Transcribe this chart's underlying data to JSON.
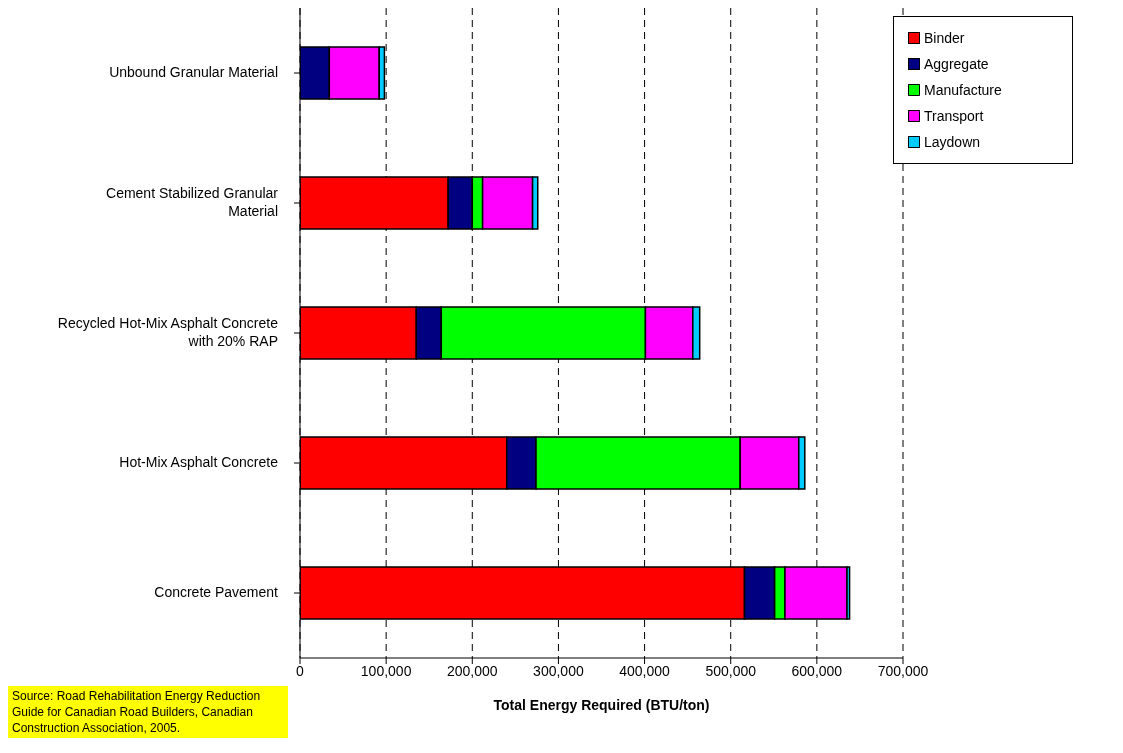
{
  "chart_data": {
    "type": "bar",
    "orientation": "horizontal",
    "stacked": true,
    "categories": [
      "Unbound Granular Material",
      "Cement Stabilized Granular Material",
      "Recycled Hot-Mix Asphalt Concrete with 20% RAP",
      "Hot-Mix Asphalt Concrete",
      "Concrete Pavement"
    ],
    "series": [
      {
        "name": "Binder",
        "color": "#ff0000",
        "values": [
          0,
          172000,
          135000,
          240000,
          516000
        ]
      },
      {
        "name": "Aggregate",
        "color": "#000080",
        "values": [
          34000,
          28000,
          29000,
          34000,
          35000
        ]
      },
      {
        "name": "Manufacture",
        "color": "#00ff00",
        "values": [
          0,
          12000,
          237000,
          237000,
          12000
        ]
      },
      {
        "name": "Transport",
        "color": "#ff00ff",
        "values": [
          58000,
          58000,
          55000,
          68000,
          72000
        ]
      },
      {
        "name": "Laydown",
        "color": "#00ccff",
        "values": [
          6000,
          6000,
          8000,
          7000,
          3000
        ]
      }
    ],
    "xlim": [
      0,
      700000
    ],
    "xticks": [
      0,
      {
        "value": 100000,
        "label": "100,000"
      },
      {
        "value": 200000,
        "label": "200,000"
      },
      {
        "value": 300000,
        "label": "300,000"
      },
      {
        "value": 400000,
        "label": "400,000"
      },
      {
        "value": 500000,
        "label": "500,000"
      },
      {
        "value": 600000,
        "label": "600,000"
      },
      {
        "value": 700000,
        "label": "700,000"
      }
    ],
    "xlabel": "Total Energy Required (BTU/ton)",
    "grid": "x",
    "legend": "top right",
    "annotations": [
      "Source: Road Rehabilitation Energy Reduction Guide for Canadian Road Builders, Canadian Construction Association, 2005."
    ]
  }
}
